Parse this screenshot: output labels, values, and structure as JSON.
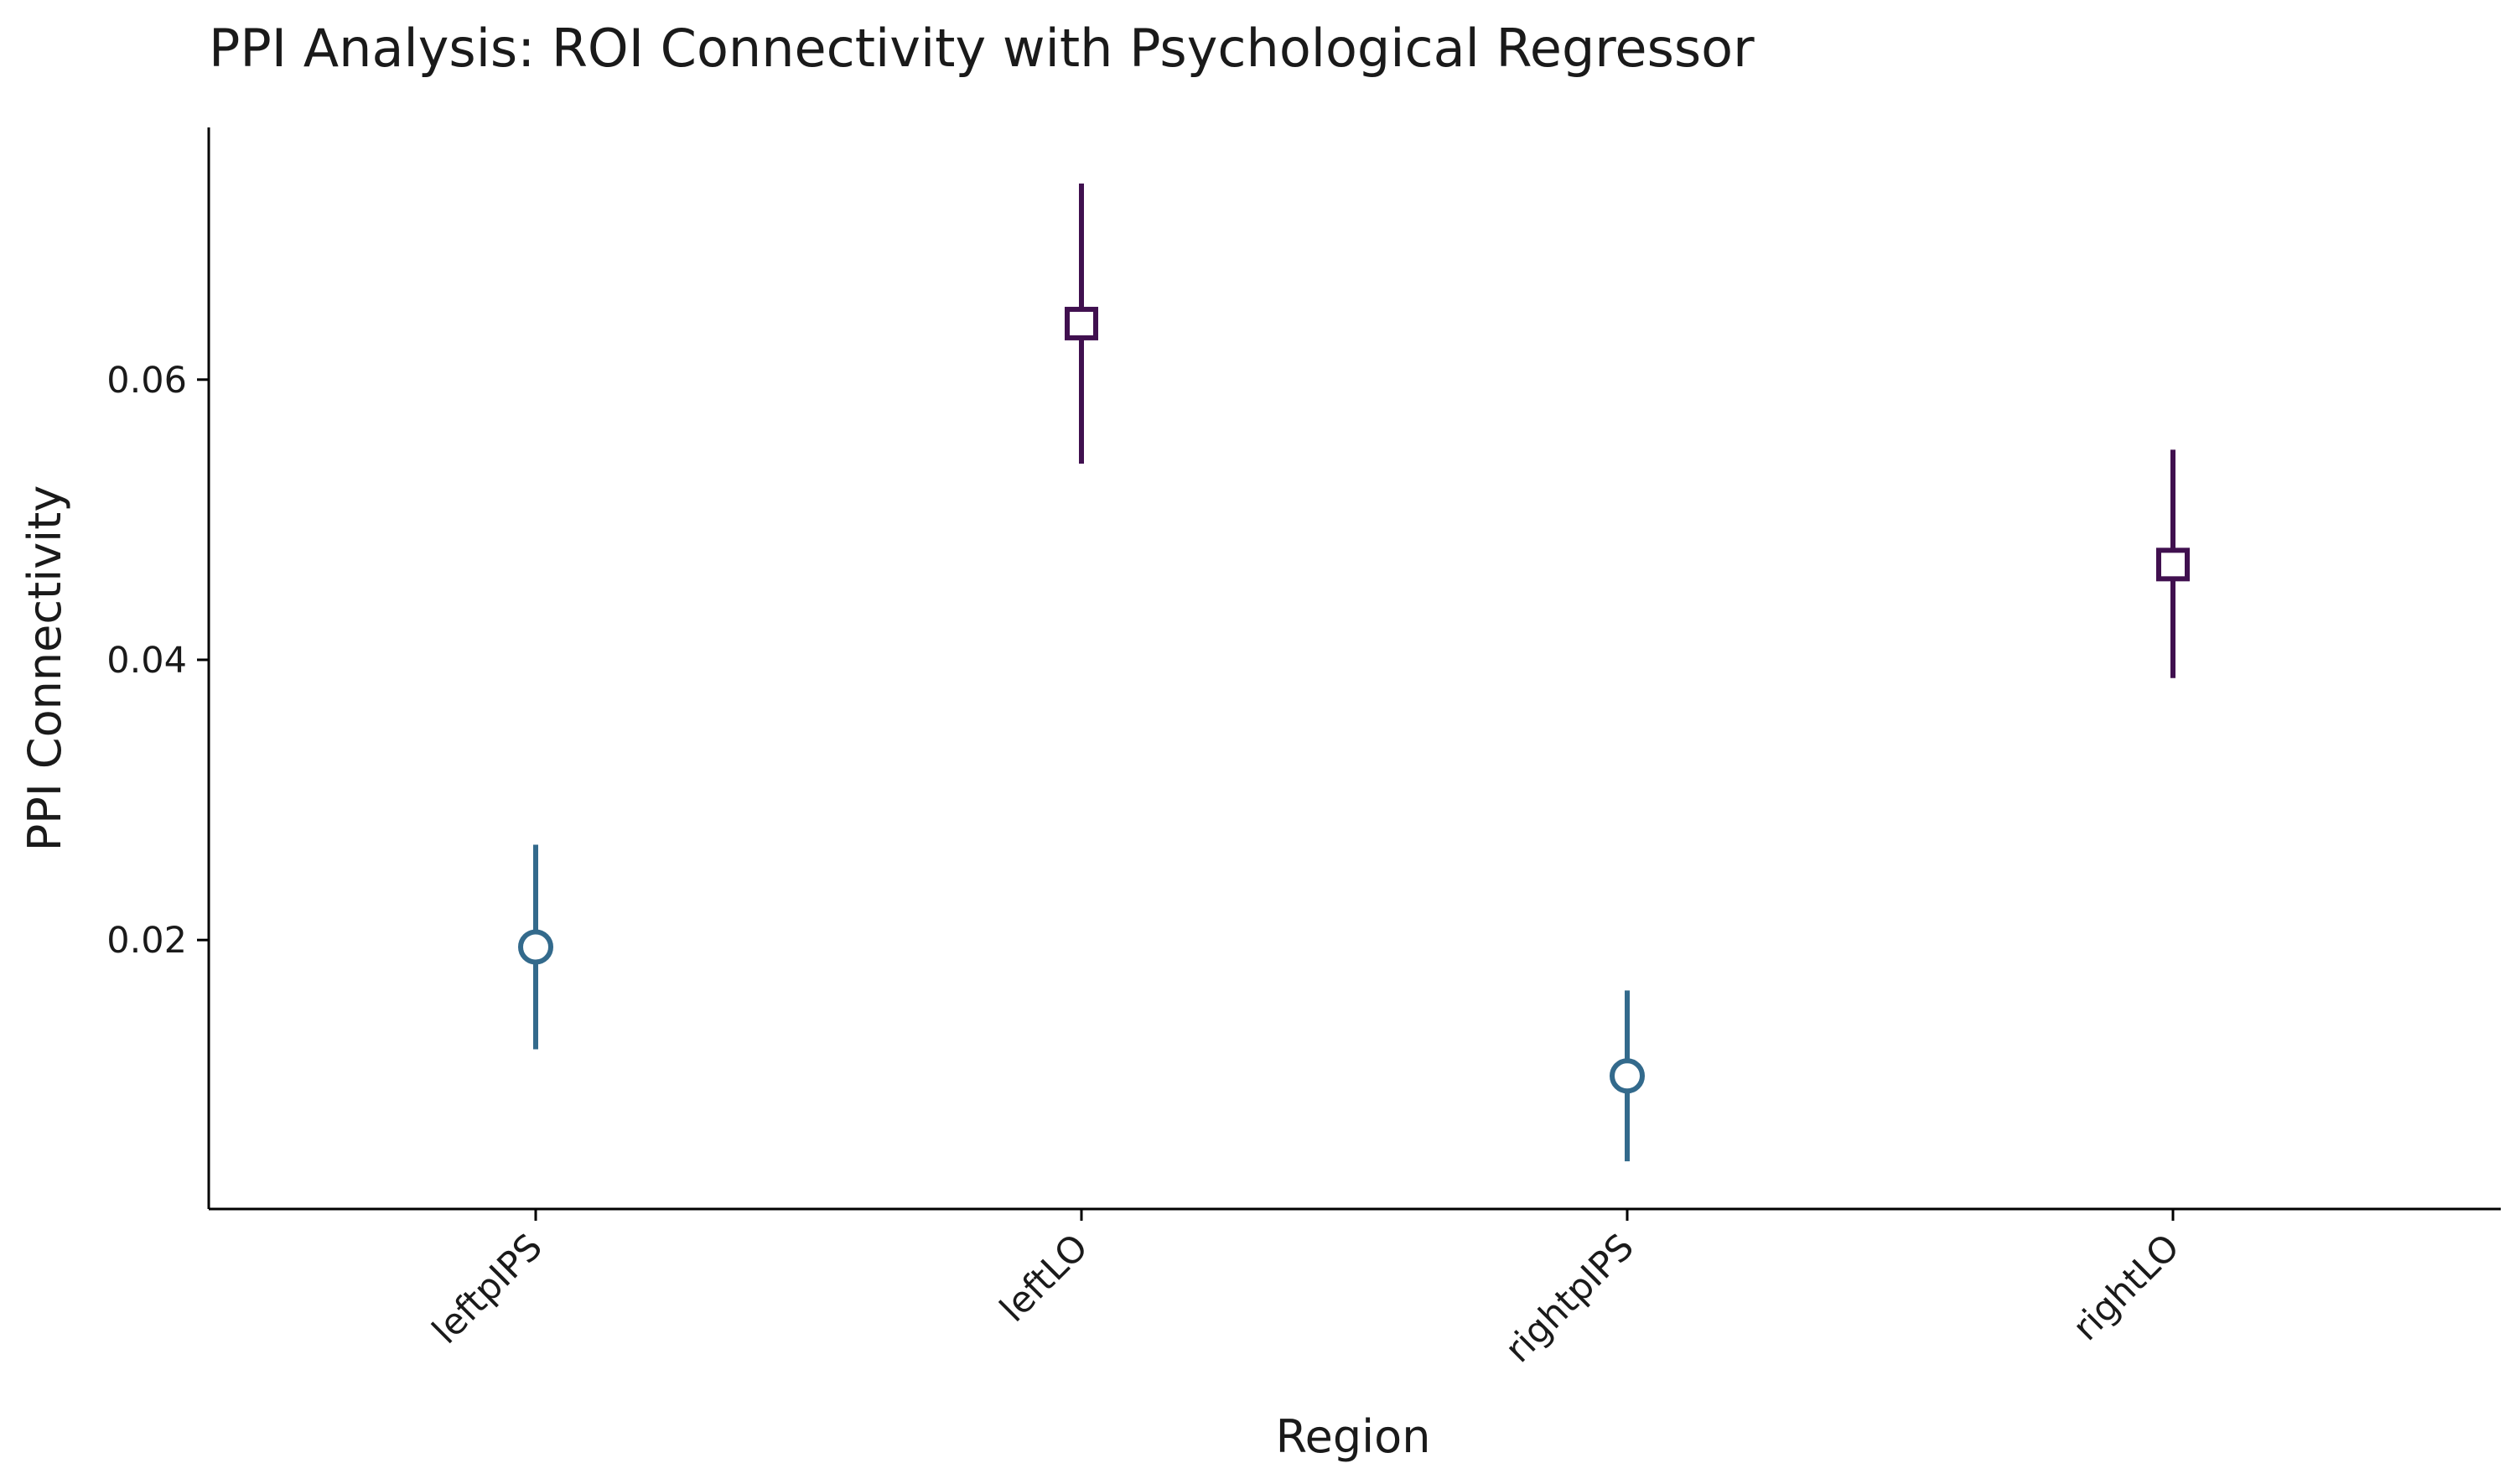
{
  "chart_data": {
    "type": "scatter",
    "title": "PPI Analysis: ROI Connectivity with Psychological Regressor",
    "xlabel": "Region",
    "ylabel": "PPI Connectivity",
    "categories": [
      "leftpIPS",
      "leftLO",
      "rightpIPS",
      "rightLO"
    ],
    "yticks": [
      0.02,
      0.04,
      0.06
    ],
    "ytick_labels": [
      "0.02",
      "0.04",
      "0.06"
    ],
    "ylim": [
      0.0008,
      0.078
    ],
    "grid": false,
    "points": [
      {
        "category": "leftpIPS",
        "value": 0.0195,
        "lower": 0.0122,
        "upper": 0.0268,
        "marker": "circle",
        "color": "#336A8C"
      },
      {
        "category": "leftLO",
        "value": 0.064,
        "lower": 0.054,
        "upper": 0.074,
        "marker": "square",
        "color": "#40104F"
      },
      {
        "category": "rightpIPS",
        "value": 0.0103,
        "lower": 0.0042,
        "upper": 0.0164,
        "marker": "circle",
        "color": "#336A8C"
      },
      {
        "category": "rightLO",
        "value": 0.0468,
        "lower": 0.0387,
        "upper": 0.055,
        "marker": "square",
        "color": "#40104F"
      }
    ]
  }
}
